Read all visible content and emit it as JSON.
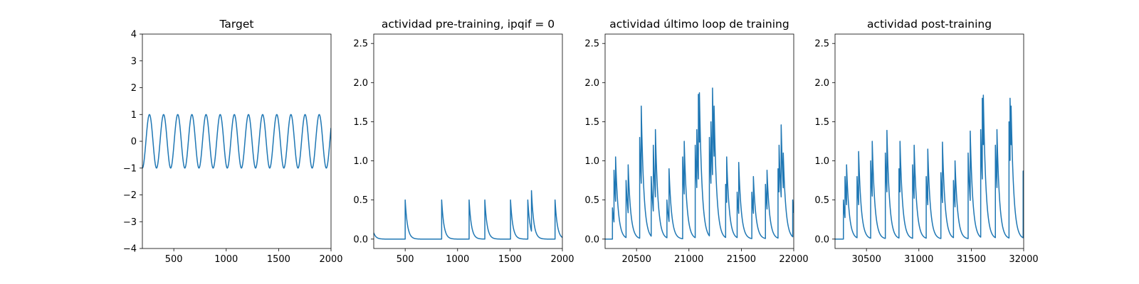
{
  "chart_data": [
    {
      "type": "line",
      "title": "Target",
      "xlim": [
        200,
        2000
      ],
      "ylim": [
        -4,
        4
      ],
      "xticks": [
        500,
        1000,
        1500,
        2000
      ],
      "yticks": [
        -4,
        -3,
        -2,
        -1,
        0,
        1,
        2,
        3,
        4
      ],
      "series": [
        {
          "kind": "sine",
          "amplitude": 1,
          "period": 135,
          "phase_x": 200,
          "phase_value": -1,
          "x_start": 200,
          "x_end": 2000
        }
      ]
    },
    {
      "type": "line",
      "title": "actividad pre-training, ipqif = 0",
      "xlim": [
        200,
        2000
      ],
      "ylim": [
        -0.12,
        2.62
      ],
      "xticks": [
        500,
        1000,
        1500,
        2000
      ],
      "yticks": [
        0.0,
        0.5,
        1.0,
        1.5,
        2.0,
        2.5
      ],
      "series": [
        {
          "kind": "spikes",
          "x_start": 200,
          "x_end": 2000,
          "initial": 0.08,
          "decay": 22,
          "spikes": [
            [
              500,
              0.5
            ],
            [
              848,
              0.5
            ],
            [
              1110,
              0.5
            ],
            [
              1260,
              0.5
            ],
            [
              1505,
              0.5
            ],
            [
              1670,
              0.5
            ],
            [
              1705,
              0.62
            ],
            [
              1930,
              0.5
            ]
          ]
        }
      ]
    },
    {
      "type": "line",
      "title": "actividad último loop de training",
      "xlim": [
        20200,
        22000
      ],
      "ylim": [
        -0.12,
        2.62
      ],
      "xticks": [
        20500,
        21000,
        21500,
        22000
      ],
      "yticks": [
        0.0,
        0.5,
        1.0,
        1.5,
        2.0,
        2.5
      ],
      "series": [
        {
          "kind": "spikes",
          "x_start": 20200,
          "x_end": 22000,
          "initial": 0.0,
          "decay": 25,
          "spikes": [
            [
              20270,
              0.4
            ],
            [
              20285,
              0.88
            ],
            [
              20300,
              1.05
            ],
            [
              20400,
              0.75
            ],
            [
              20420,
              0.95
            ],
            [
              20530,
              1.3
            ],
            [
              20545,
              1.7
            ],
            [
              20640,
              0.8
            ],
            [
              20660,
              1.2
            ],
            [
              20680,
              1.4
            ],
            [
              20790,
              0.5
            ],
            [
              20810,
              0.9
            ],
            [
              20940,
              1.05
            ],
            [
              20955,
              1.25
            ],
            [
              21060,
              1.2
            ],
            [
              21075,
              1.4
            ],
            [
              21090,
              1.85
            ],
            [
              21100,
              1.87
            ],
            [
              21195,
              1.3
            ],
            [
              21210,
              1.5
            ],
            [
              21225,
              1.93
            ],
            [
              21240,
              1.7
            ],
            [
              21350,
              0.7
            ],
            [
              21360,
              1.05
            ],
            [
              21460,
              0.6
            ],
            [
              21475,
              0.98
            ],
            [
              21600,
              0.6
            ],
            [
              21615,
              0.8
            ],
            [
              21730,
              0.7
            ],
            [
              21745,
              0.88
            ],
            [
              21850,
              0.9
            ],
            [
              21860,
              1.2
            ],
            [
              21880,
              1.46
            ],
            [
              21900,
              1.1
            ],
            [
              21990,
              0.5
            ]
          ]
        }
      ]
    },
    {
      "type": "line",
      "title": "actividad post-training",
      "xlim": [
        30200,
        32000
      ],
      "ylim": [
        -0.12,
        2.62
      ],
      "xticks": [
        30500,
        31000,
        31500,
        32000
      ],
      "yticks": [
        0.0,
        0.5,
        1.0,
        1.5,
        2.0,
        2.5
      ],
      "series": [
        {
          "kind": "spikes",
          "x_start": 30200,
          "x_end": 32000,
          "initial": 0.0,
          "decay": 25,
          "spikes": [
            [
              30280,
              0.5
            ],
            [
              30295,
              0.8
            ],
            [
              30310,
              0.95
            ],
            [
              30410,
              0.8
            ],
            [
              30425,
              1.12
            ],
            [
              30540,
              1.0
            ],
            [
              30555,
              1.25
            ],
            [
              30680,
              1.1
            ],
            [
              30695,
              1.39
            ],
            [
              30810,
              0.9
            ],
            [
              30820,
              1.25
            ],
            [
              30940,
              0.95
            ],
            [
              30955,
              1.2
            ],
            [
              31070,
              0.8
            ],
            [
              31085,
              1.15
            ],
            [
              31210,
              0.85
            ],
            [
              31225,
              1.24
            ],
            [
              31330,
              0.75
            ],
            [
              31345,
              1.0
            ],
            [
              31470,
              1.1
            ],
            [
              31490,
              1.38
            ],
            [
              31590,
              1.4
            ],
            [
              31605,
              1.8
            ],
            [
              31615,
              1.84
            ],
            [
              31730,
              1.2
            ],
            [
              31745,
              1.4
            ],
            [
              31860,
              1.5
            ],
            [
              31870,
              1.8
            ],
            [
              31880,
              1.7
            ],
            [
              31995,
              0.87
            ]
          ]
        }
      ]
    }
  ]
}
